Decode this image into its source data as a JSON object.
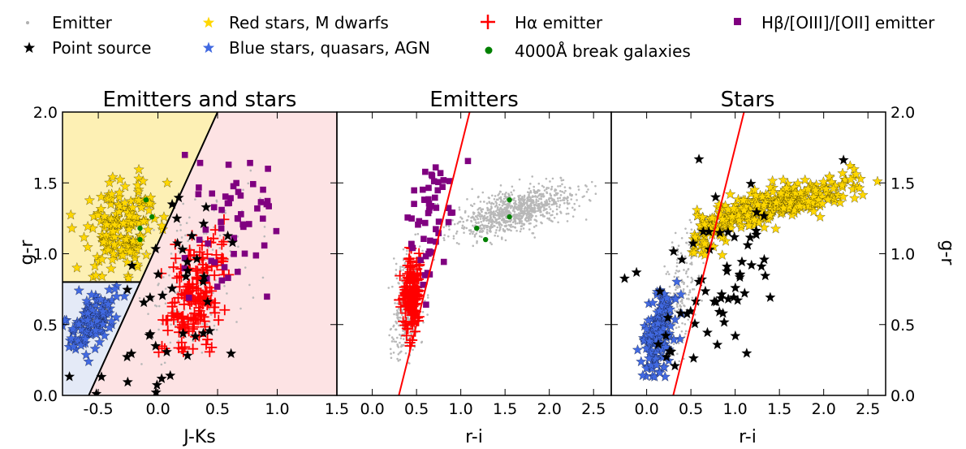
{
  "legend": {
    "items": [
      {
        "label": "Emitter",
        "marker": "dot",
        "color": "#b0b0b0"
      },
      {
        "label": "Point source",
        "marker": "star",
        "color": "#000000"
      },
      {
        "label": "Red stars, M dwarfs",
        "marker": "star",
        "color": "#ffd700"
      },
      {
        "label": "Blue stars, quasars, AGN",
        "marker": "star",
        "color": "#4169e1"
      },
      {
        "label": "Hα emitter",
        "marker": "plus",
        "color": "#ff0000"
      },
      {
        "label": "4000Å break galaxies",
        "marker": "circle",
        "color": "#008000"
      },
      {
        "label": "Hβ/[OIII]/[OII] emitter",
        "marker": "square",
        "color": "#800080"
      }
    ]
  },
  "colors": {
    "emitter": "#b8b8b8",
    "point_source": "#000000",
    "red_star": "#ffd700",
    "blue_star": "#4169e1",
    "halpha": "#ff0000",
    "break_gal": "#008000",
    "hbeta": "#800080",
    "cut_line": "#ff0000",
    "yellow_region": "#fdf0b4",
    "pink_region": "#fde3e4",
    "blue_region": "#e4eaf7"
  },
  "chart_data": [
    {
      "type": "scatter",
      "title": "Emitters and stars",
      "xlabel": "J-Ks",
      "ylabel": "g-r",
      "xlim": [
        -0.8,
        1.5
      ],
      "ylim": [
        0.0,
        2.0
      ],
      "xticks": [
        "-0.5",
        "0.0",
        "0.5",
        "1.0",
        "1.5"
      ],
      "xtick_values": [
        -0.5,
        0.0,
        0.5,
        1.0,
        1.5
      ],
      "yticks": [
        "0.0",
        "0.5",
        "1.0",
        "1.5",
        "2.0"
      ],
      "ytick_values": [
        0.0,
        0.5,
        1.0,
        1.5,
        2.0
      ],
      "regions": [
        {
          "name": "red-stars-region",
          "color_key": "yellow_region",
          "polygon": [
            [
              -0.8,
              0.8
            ],
            [
              -0.15,
              0.8
            ],
            [
              0.5,
              2.0
            ],
            [
              -0.8,
              2.0
            ]
          ]
        },
        {
          "name": "blue-stars-region",
          "color_key": "blue_region",
          "polygon": [
            [
              -0.8,
              0.0
            ],
            [
              -0.58,
              0.0
            ],
            [
              -0.15,
              0.8
            ],
            [
              -0.8,
              0.8
            ]
          ]
        },
        {
          "name": "emitters-region",
          "color_key": "pink_region",
          "polygon": [
            [
              -0.58,
              0.0
            ],
            [
              1.5,
              0.0
            ],
            [
              1.5,
              2.0
            ],
            [
              0.5,
              2.0
            ]
          ]
        }
      ],
      "lines": [
        {
          "name": "stellar-cut-line",
          "points": [
            [
              -0.58,
              0.0
            ],
            [
              0.5,
              2.0
            ]
          ],
          "color_key": "point_source"
        },
        {
          "name": "blue-red-divider",
          "points": [
            [
              -0.8,
              0.8
            ],
            [
              -0.15,
              0.8
            ]
          ],
          "color_key": "point_source"
        }
      ],
      "series": [
        {
          "name": "Red stars, M dwarfs",
          "marker": "star",
          "color_key": "red_star",
          "cluster": {
            "n": 170,
            "cx": -0.3,
            "cy": 1.2,
            "sx": 0.17,
            "sy": 0.17,
            "xmin": -0.8,
            "xmax": 0.1,
            "ymin": 0.82,
            "ymax": 1.62,
            "rot": 0.3
          }
        },
        {
          "name": "Blue stars, quasars, AGN",
          "marker": "star",
          "color_key": "blue_star",
          "cluster": {
            "n": 110,
            "cx": -0.55,
            "cy": 0.52,
            "sx": 0.1,
            "sy": 0.1,
            "xmin": -0.8,
            "xmax": -0.25,
            "ymin": 0.22,
            "ymax": 0.78,
            "rot": 0.6
          }
        },
        {
          "name": "Emitter",
          "marker": "dot",
          "color_key": "emitter",
          "cluster": {
            "n": 160,
            "cx": 0.35,
            "cy": 0.85,
            "sx": 0.25,
            "sy": 0.3,
            "xmin": -0.2,
            "xmax": 1.1,
            "ymin": 0.2,
            "ymax": 1.7,
            "rot": 0.5
          }
        },
        {
          "name": "Hα emitter",
          "marker": "plus",
          "color_key": "halpha",
          "cluster": {
            "n": 170,
            "cx": 0.3,
            "cy": 0.7,
            "sx": 0.13,
            "sy": 0.18,
            "xmin": 0.0,
            "xmax": 0.85,
            "ymin": 0.28,
            "ymax": 1.25,
            "rot": 0.6
          }
        },
        {
          "name": "Hβ/[OIII]/[OII] emitter",
          "marker": "square",
          "color_key": "hbeta",
          "cluster": {
            "n": 55,
            "cx": 0.65,
            "cy": 1.2,
            "sx": 0.22,
            "sy": 0.3,
            "xmin": 0.2,
            "xmax": 1.15,
            "ymin": 0.35,
            "ymax": 1.8,
            "rot": 0.5
          }
        },
        {
          "name": "Point source",
          "marker": "star",
          "color_key": "point_source",
          "cluster": {
            "n": 45,
            "cx": 0.1,
            "cy": 0.7,
            "sx": 0.3,
            "sy": 0.35,
            "xmin": -0.8,
            "xmax": 1.0,
            "ymin": 0.0,
            "ymax": 1.4,
            "rot": 0.5
          }
        },
        {
          "name": "4000Å break galaxies",
          "marker": "circle",
          "color_key": "break_gal",
          "points": [
            [
              -0.1,
              1.38
            ],
            [
              -0.15,
              1.18
            ],
            [
              -0.05,
              1.26
            ],
            [
              -0.15,
              1.1
            ]
          ]
        }
      ]
    },
    {
      "type": "scatter",
      "title": "Emitters",
      "xlabel": "r-i",
      "ylabel": "",
      "xlim": [
        -0.4,
        2.7
      ],
      "ylim": [
        0.0,
        2.0
      ],
      "xticks": [
        "0.0",
        "0.5",
        "1.0",
        "1.5",
        "2.0",
        "2.5"
      ],
      "xtick_values": [
        0.0,
        0.5,
        1.0,
        1.5,
        2.0,
        2.5
      ],
      "yticks": [],
      "ytick_values": [
        0.0,
        0.5,
        1.0,
        1.5,
        2.0
      ],
      "lines": [
        {
          "name": "selection-line",
          "points": [
            [
              0.3,
              0.0
            ],
            [
              1.1,
              2.0
            ]
          ],
          "color_key": "cut_line"
        }
      ],
      "series": [
        {
          "name": "Emitter",
          "marker": "dot",
          "color_key": "emitter",
          "cluster": {
            "n": 950,
            "cx": 1.6,
            "cy": 1.3,
            "sx": 0.32,
            "sy": 0.07,
            "xmin": 0.7,
            "xmax": 2.6,
            "ymin": 1.05,
            "ymax": 1.55,
            "rot": 0.15
          }
        },
        {
          "name": "Emitter",
          "marker": "dot",
          "color_key": "emitter",
          "cluster": {
            "n": 380,
            "cx": 0.4,
            "cy": 0.65,
            "sx": 0.09,
            "sy": 0.2,
            "xmin": -0.05,
            "xmax": 0.8,
            "ymin": 0.2,
            "ymax": 1.15,
            "rot": 0.9
          }
        },
        {
          "name": "Hα emitter",
          "marker": "plus",
          "color_key": "halpha",
          "cluster": {
            "n": 150,
            "cx": 0.45,
            "cy": 0.7,
            "sx": 0.05,
            "sy": 0.15,
            "xmin": 0.2,
            "xmax": 0.6,
            "ymin": 0.28,
            "ymax": 1.28,
            "rot": 0.6
          }
        },
        {
          "name": "Hβ/[OIII]/[OII] emitter",
          "marker": "square",
          "color_key": "hbeta",
          "cluster": {
            "n": 55,
            "cx": 0.65,
            "cy": 1.3,
            "sx": 0.15,
            "sy": 0.25,
            "xmin": 0.35,
            "xmax": 1.1,
            "ymin": 0.4,
            "ymax": 1.72,
            "rot": 0.75
          }
        },
        {
          "name": "4000Å break galaxies",
          "marker": "circle",
          "color_key": "break_gal",
          "points": [
            [
              1.55,
              1.38
            ],
            [
              1.18,
              1.18
            ],
            [
              1.55,
              1.26
            ],
            [
              1.28,
              1.1
            ]
          ]
        }
      ]
    },
    {
      "type": "scatter",
      "title": "Stars",
      "xlabel": "r-i",
      "ylabel": "g-r",
      "xlim": [
        -0.4,
        2.7
      ],
      "ylim": [
        0.0,
        2.0
      ],
      "xticks": [
        "0.0",
        "0.5",
        "1.0",
        "1.5",
        "2.0",
        "2.5"
      ],
      "xtick_values": [
        0.0,
        0.5,
        1.0,
        1.5,
        2.0,
        2.5
      ],
      "yticks": [
        "0.0",
        "0.5",
        "1.0",
        "1.5",
        "2.0"
      ],
      "ytick_values": [
        0.0,
        0.5,
        1.0,
        1.5,
        2.0
      ],
      "lines": [
        {
          "name": "selection-line",
          "points": [
            [
              0.3,
              0.0
            ],
            [
              1.1,
              2.0
            ]
          ],
          "color_key": "cut_line"
        }
      ],
      "series": [
        {
          "name": "Emitter",
          "marker": "dot",
          "color_key": "emitter",
          "cluster": {
            "n": 160,
            "cx": 0.4,
            "cy": 0.75,
            "sx": 0.1,
            "sy": 0.22,
            "xmin": 0.0,
            "xmax": 0.9,
            "ymin": 0.2,
            "ymax": 1.25,
            "rot": 0.9
          }
        },
        {
          "name": "Red stars, M dwarfs",
          "marker": "star",
          "color_key": "red_star",
          "cluster": {
            "n": 300,
            "cx": 1.5,
            "cy": 1.35,
            "sx": 0.45,
            "sy": 0.06,
            "xmin": 0.55,
            "xmax": 2.65,
            "ymin": 1.05,
            "ymax": 1.62,
            "rot": 0.15
          }
        },
        {
          "name": "Red stars, M dwarfs",
          "marker": "star",
          "color_key": "red_star",
          "cluster": {
            "n": 50,
            "cx": 0.7,
            "cy": 1.15,
            "sx": 0.12,
            "sy": 0.1,
            "xmin": 0.4,
            "xmax": 1.0,
            "ymin": 0.95,
            "ymax": 1.35,
            "rot": 0.5
          }
        },
        {
          "name": "Blue stars, quasars, AGN",
          "marker": "star",
          "color_key": "blue_star",
          "cluster": {
            "n": 140,
            "cx": 0.15,
            "cy": 0.45,
            "sx": 0.1,
            "sy": 0.14,
            "xmin": -0.4,
            "xmax": 0.45,
            "ymin": 0.05,
            "ymax": 0.88,
            "rot": 0.8
          }
        },
        {
          "name": "Point source",
          "marker": "star",
          "color_key": "point_source",
          "cluster": {
            "n": 65,
            "cx": 0.7,
            "cy": 0.75,
            "sx": 0.5,
            "sy": 0.4,
            "xmin": -0.35,
            "xmax": 2.6,
            "ymin": 0.1,
            "ymax": 1.7,
            "rot": 0.5
          }
        }
      ]
    }
  ]
}
